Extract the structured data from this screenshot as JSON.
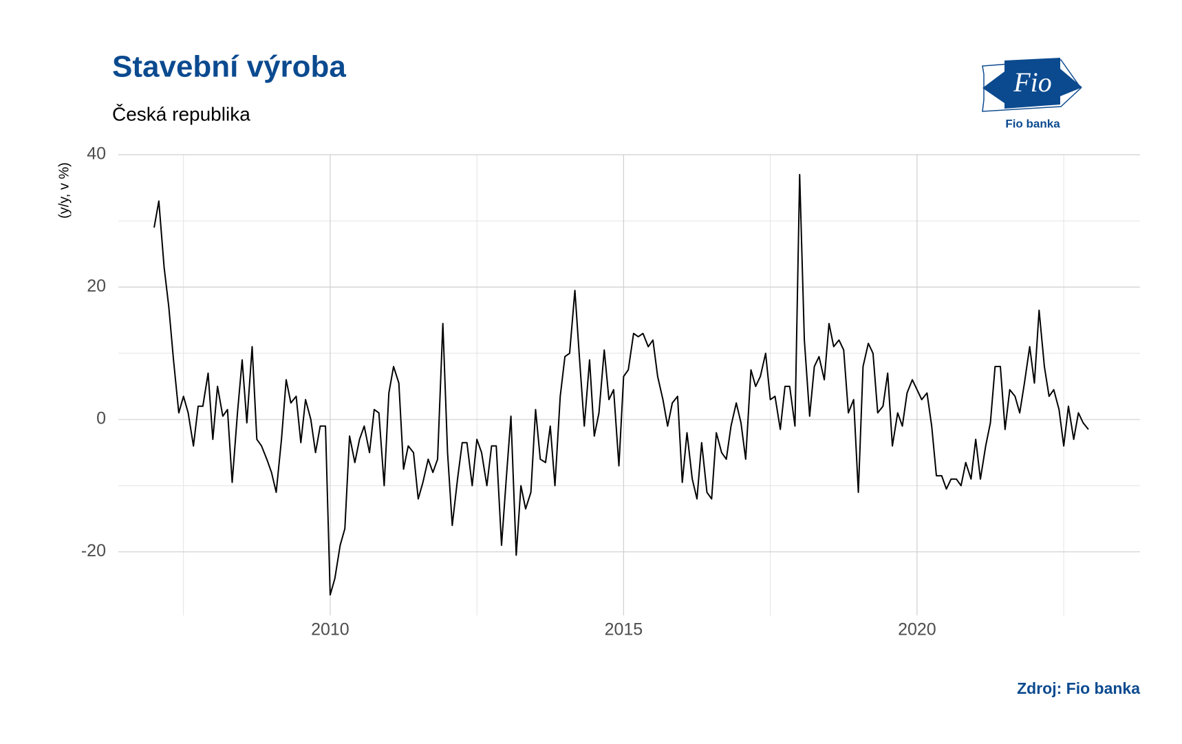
{
  "chart_data": {
    "type": "line",
    "title": "Stavební výroba",
    "subtitle": "Česká republika",
    "y_label": "(y/y, v %)",
    "source": "Zdroj: Fio banka",
    "logo": {
      "text": "Fio",
      "caption": "Fio banka"
    },
    "color": "#000000",
    "x": [
      2007.0,
      2007.08,
      2007.17,
      2007.25,
      2007.33,
      2007.42,
      2007.5,
      2007.58,
      2007.67,
      2007.75,
      2007.83,
      2007.92,
      2008.0,
      2008.08,
      2008.17,
      2008.25,
      2008.33,
      2008.42,
      2008.5,
      2008.58,
      2008.67,
      2008.75,
      2008.83,
      2008.92,
      2009.0,
      2009.08,
      2009.17,
      2009.25,
      2009.33,
      2009.42,
      2009.5,
      2009.58,
      2009.67,
      2009.75,
      2009.83,
      2009.92,
      2010.0,
      2010.08,
      2010.17,
      2010.25,
      2010.33,
      2010.42,
      2010.5,
      2010.58,
      2010.67,
      2010.75,
      2010.83,
      2010.92,
      2011.0,
      2011.08,
      2011.17,
      2011.25,
      2011.33,
      2011.42,
      2011.5,
      2011.58,
      2011.67,
      2011.75,
      2011.83,
      2011.92,
      2012.0,
      2012.08,
      2012.17,
      2012.25,
      2012.33,
      2012.42,
      2012.5,
      2012.58,
      2012.67,
      2012.75,
      2012.83,
      2012.92,
      2013.0,
      2013.08,
      2013.17,
      2013.25,
      2013.33,
      2013.42,
      2013.5,
      2013.58,
      2013.67,
      2013.75,
      2013.83,
      2013.92,
      2014.0,
      2014.08,
      2014.17,
      2014.25,
      2014.33,
      2014.42,
      2014.5,
      2014.58,
      2014.67,
      2014.75,
      2014.83,
      2014.92,
      2015.0,
      2015.08,
      2015.17,
      2015.25,
      2015.33,
      2015.42,
      2015.5,
      2015.58,
      2015.67,
      2015.75,
      2015.83,
      2015.92,
      2016.0,
      2016.08,
      2016.17,
      2016.25,
      2016.33,
      2016.42,
      2016.5,
      2016.58,
      2016.67,
      2016.75,
      2016.83,
      2016.92,
      2017.0,
      2017.08,
      2017.17,
      2017.25,
      2017.33,
      2017.42,
      2017.5,
      2017.58,
      2017.67,
      2017.75,
      2017.83,
      2017.92,
      2018.0,
      2018.08,
      2018.17,
      2018.25,
      2018.33,
      2018.42,
      2018.5,
      2018.58,
      2018.67,
      2018.75,
      2018.83,
      2018.92,
      2019.0,
      2019.08,
      2019.17,
      2019.25,
      2019.33,
      2019.42,
      2019.5,
      2019.58,
      2019.67,
      2019.75,
      2019.83,
      2019.92,
      2020.0,
      2020.08,
      2020.17,
      2020.25,
      2020.33,
      2020.42,
      2020.5,
      2020.58,
      2020.67,
      2020.75,
      2020.83,
      2020.92,
      2021.0,
      2021.08,
      2021.17,
      2021.25,
      2021.33,
      2021.42,
      2021.5,
      2021.58,
      2021.67,
      2021.75,
      2021.83,
      2021.92,
      2022.0,
      2022.08,
      2022.17,
      2022.25,
      2022.33,
      2022.42,
      2022.5,
      2022.58,
      2022.67,
      2022.75,
      2022.83,
      2022.92
    ],
    "values": [
      29,
      33,
      23,
      17,
      9,
      1,
      3.5,
      1,
      -4,
      2,
      2,
      7,
      -3,
      5,
      0.5,
      1.5,
      -9.5,
      1,
      9,
      -0.5,
      11,
      -3,
      -4,
      -6,
      -8,
      -11,
      -3,
      6,
      2.5,
      3.5,
      -3.5,
      3,
      0,
      -5,
      -1,
      -1,
      -26.5,
      -24,
      -19,
      -16.5,
      -2.5,
      -6.5,
      -3,
      -1,
      -5,
      1.5,
      1,
      -10,
      4,
      8,
      5.5,
      -7.5,
      -4,
      -5,
      -12,
      -9.5,
      -6,
      -8,
      -6,
      14.5,
      -5,
      -16,
      -9,
      -3.5,
      -3.5,
      -10,
      -3,
      -5,
      -10,
      -4,
      -4,
      -19,
      -9,
      0.5,
      -20.5,
      -10,
      -13.5,
      -11,
      1.5,
      -6,
      -6.5,
      -1,
      -10,
      3.5,
      9.5,
      10,
      19.5,
      9,
      -1,
      9,
      -2.5,
      1,
      10.5,
      3,
      4.5,
      -7,
      6.5,
      7.5,
      13,
      12.5,
      13,
      11,
      12,
      6.5,
      3,
      -1,
      2.5,
      3.5,
      -9.5,
      -2,
      -9,
      -12,
      -3.5,
      -11,
      -12,
      -2,
      -5,
      -6,
      -1,
      2.5,
      -0.5,
      -6,
      7.5,
      5,
      6.5,
      10,
      3,
      3.5,
      -1.5,
      5,
      5,
      -1,
      37,
      12,
      0.5,
      8,
      9.5,
      6,
      14.5,
      11,
      12,
      10.5,
      1,
      3,
      -11,
      8,
      11.5,
      10,
      1,
      2,
      7,
      -4,
      1,
      -1,
      4,
      6,
      4.5,
      3,
      4,
      -1,
      -8.5,
      -8.5,
      -10.5,
      -9,
      -9,
      -10,
      -6.5,
      -9,
      -3,
      -9,
      -4,
      -0.5,
      8,
      8,
      -1.5,
      4.5,
      3.5,
      1,
      5.5,
      11,
      5.5,
      16.5,
      8,
      3.5,
      4.5,
      1.5,
      -4,
      2,
      -3,
      1,
      -0.5,
      -1.5
    ],
    "xlim": [
      2006.39,
      2023.8
    ],
    "ylim": [
      -29.6,
      40
    ],
    "xticks": [
      2010,
      2015,
      2020
    ],
    "yticks": [
      -20,
      0,
      20,
      40
    ],
    "xminor": [
      2007.5,
      2012.5,
      2017.5,
      2022.5
    ],
    "yminor": [
      -10,
      10,
      30
    ],
    "grid": true
  }
}
